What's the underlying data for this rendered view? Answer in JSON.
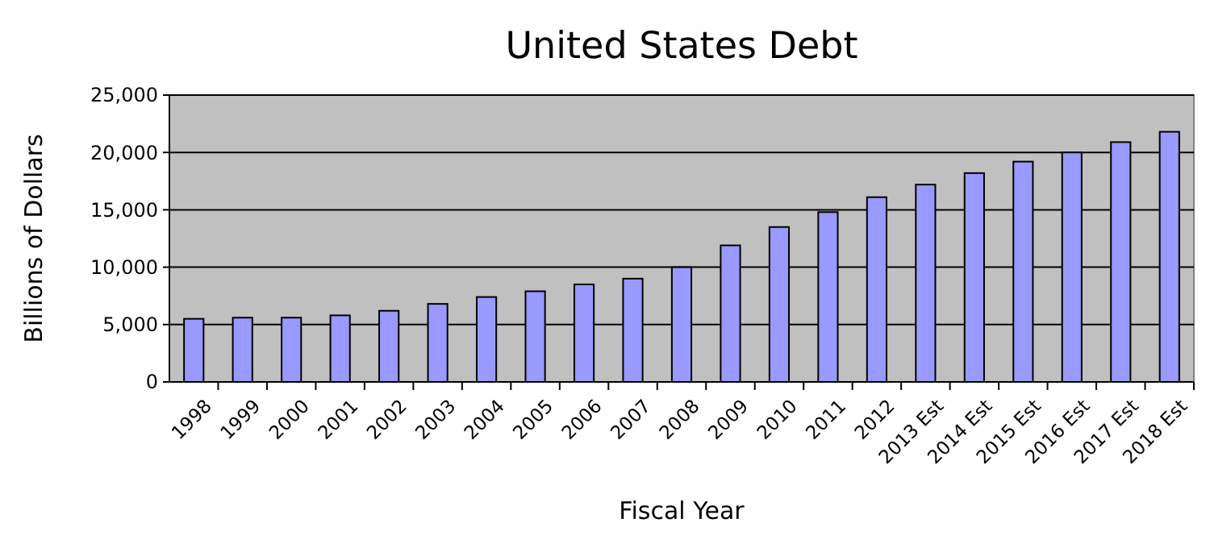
{
  "chart_data": {
    "type": "bar",
    "title": "United States Debt",
    "xlabel": "Fiscal Year",
    "ylabel": "Billions of Dollars",
    "categories": [
      "1998",
      "1999",
      "2000",
      "2001",
      "2002",
      "2003",
      "2004",
      "2005",
      "2006",
      "2007",
      "2008",
      "2009",
      "2010",
      "2011",
      "2012",
      "2013 Est",
      "2014 Est",
      "2015 Est",
      "2016 Est",
      "2017 Est",
      "2018 Est"
    ],
    "values": [
      5500,
      5600,
      5600,
      5800,
      6200,
      6800,
      7400,
      7900,
      8500,
      9000,
      10000,
      11900,
      13500,
      14800,
      16100,
      17200,
      18200,
      19200,
      20000,
      20900,
      21800
    ],
    "color": "#9999ff",
    "ylim": [
      0,
      25000
    ],
    "yticks": [
      {
        "value": 0,
        "label": "0"
      },
      {
        "value": 5000,
        "label": "5,000"
      },
      {
        "value": 10000,
        "label": "10,000"
      },
      {
        "value": 15000,
        "label": "15,000"
      },
      {
        "value": 20000,
        "label": "20,000"
      },
      {
        "value": 25000,
        "label": "25,000"
      }
    ],
    "grid": "y"
  }
}
